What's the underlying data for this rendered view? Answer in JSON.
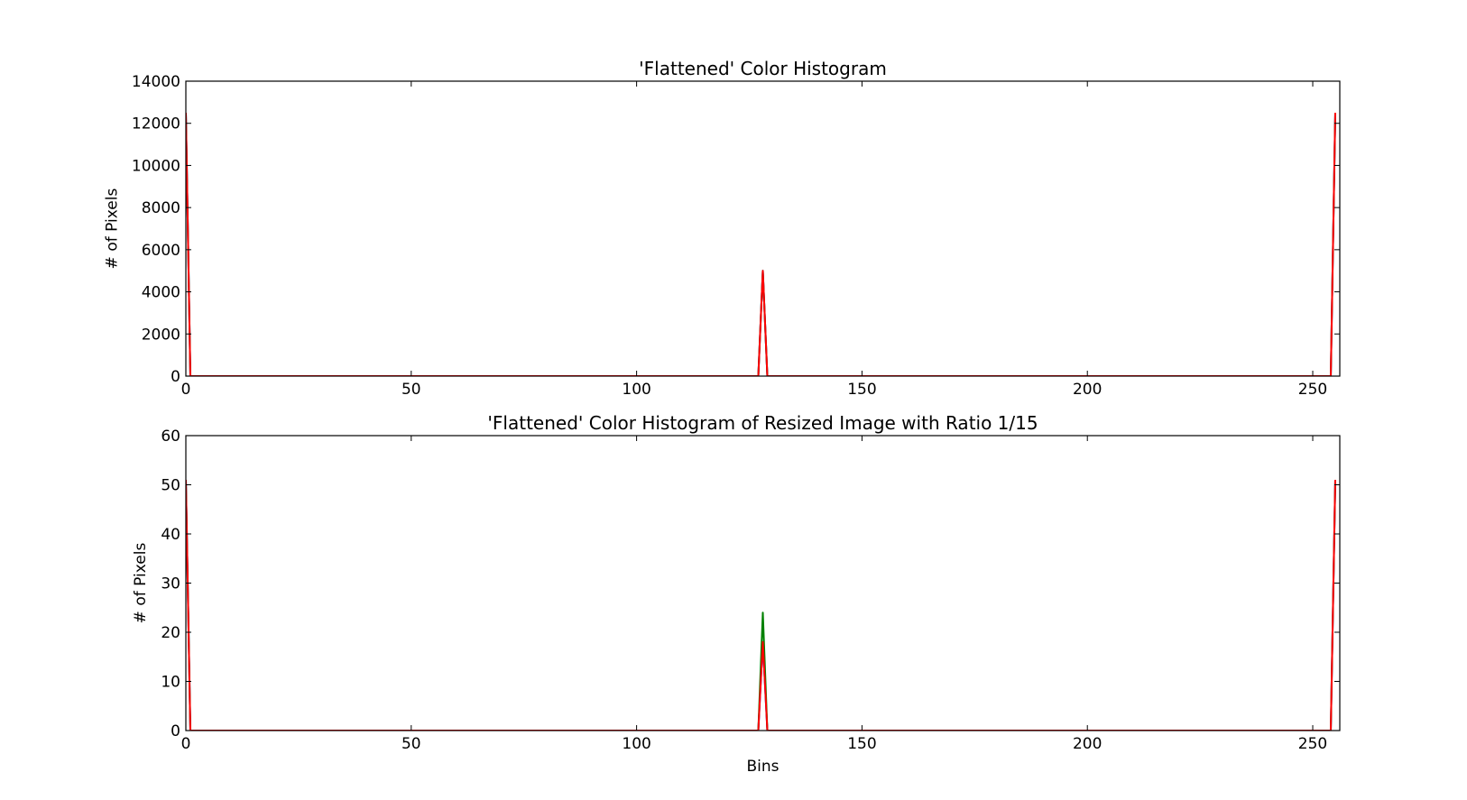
{
  "chart_data": [
    {
      "type": "line",
      "title": "'Flattened' Color Histogram",
      "xlabel": "",
      "ylabel": "# of Pixels",
      "xlim": [
        0,
        256
      ],
      "ylim": [
        0,
        14000
      ],
      "xticks": [
        0,
        50,
        100,
        150,
        200,
        250
      ],
      "yticks": [
        0,
        2000,
        4000,
        6000,
        8000,
        10000,
        12000,
        14000
      ],
      "grid": false,
      "series": [
        {
          "color": "#0000ff",
          "points": [
            [
              0,
              12500
            ],
            [
              1,
              0
            ],
            [
              127,
              0
            ],
            [
              128,
              5000
            ],
            [
              129,
              0
            ],
            [
              254,
              0
            ],
            [
              255,
              12500
            ]
          ]
        },
        {
          "color": "#008000",
          "points": [
            [
              0,
              12500
            ],
            [
              1,
              0
            ],
            [
              127,
              0
            ],
            [
              128,
              5000
            ],
            [
              129,
              0
            ],
            [
              254,
              0
            ],
            [
              255,
              12500
            ]
          ]
        },
        {
          "color": "#ff0000",
          "points": [
            [
              0,
              12500
            ],
            [
              1,
              0
            ],
            [
              127,
              0
            ],
            [
              128,
              5000
            ],
            [
              129,
              0
            ],
            [
              254,
              0
            ],
            [
              255,
              12500
            ]
          ]
        }
      ]
    },
    {
      "type": "line",
      "title": "'Flattened' Color Histogram of Resized Image with Ratio 1/15",
      "xlabel": "Bins",
      "ylabel": "# of Pixels",
      "xlim": [
        0,
        256
      ],
      "ylim": [
        0,
        60
      ],
      "xticks": [
        0,
        50,
        100,
        150,
        200,
        250
      ],
      "yticks": [
        0,
        10,
        20,
        30,
        40,
        50,
        60
      ],
      "grid": false,
      "series": [
        {
          "color": "#0000ff",
          "points": [
            [
              0,
              51
            ],
            [
              1,
              0
            ],
            [
              127,
              0
            ],
            [
              128,
              18
            ],
            [
              129,
              0
            ],
            [
              254,
              0
            ],
            [
              255,
              51
            ]
          ]
        },
        {
          "color": "#008000",
          "points": [
            [
              0,
              51
            ],
            [
              1,
              0
            ],
            [
              127,
              0
            ],
            [
              128,
              24
            ],
            [
              129,
              0
            ],
            [
              254,
              0
            ],
            [
              255,
              51
            ]
          ]
        },
        {
          "color": "#ff0000",
          "points": [
            [
              0,
              51
            ],
            [
              1,
              0
            ],
            [
              127,
              0
            ],
            [
              128,
              18
            ],
            [
              129,
              0
            ],
            [
              254,
              0
            ],
            [
              255,
              51
            ]
          ]
        }
      ]
    }
  ]
}
